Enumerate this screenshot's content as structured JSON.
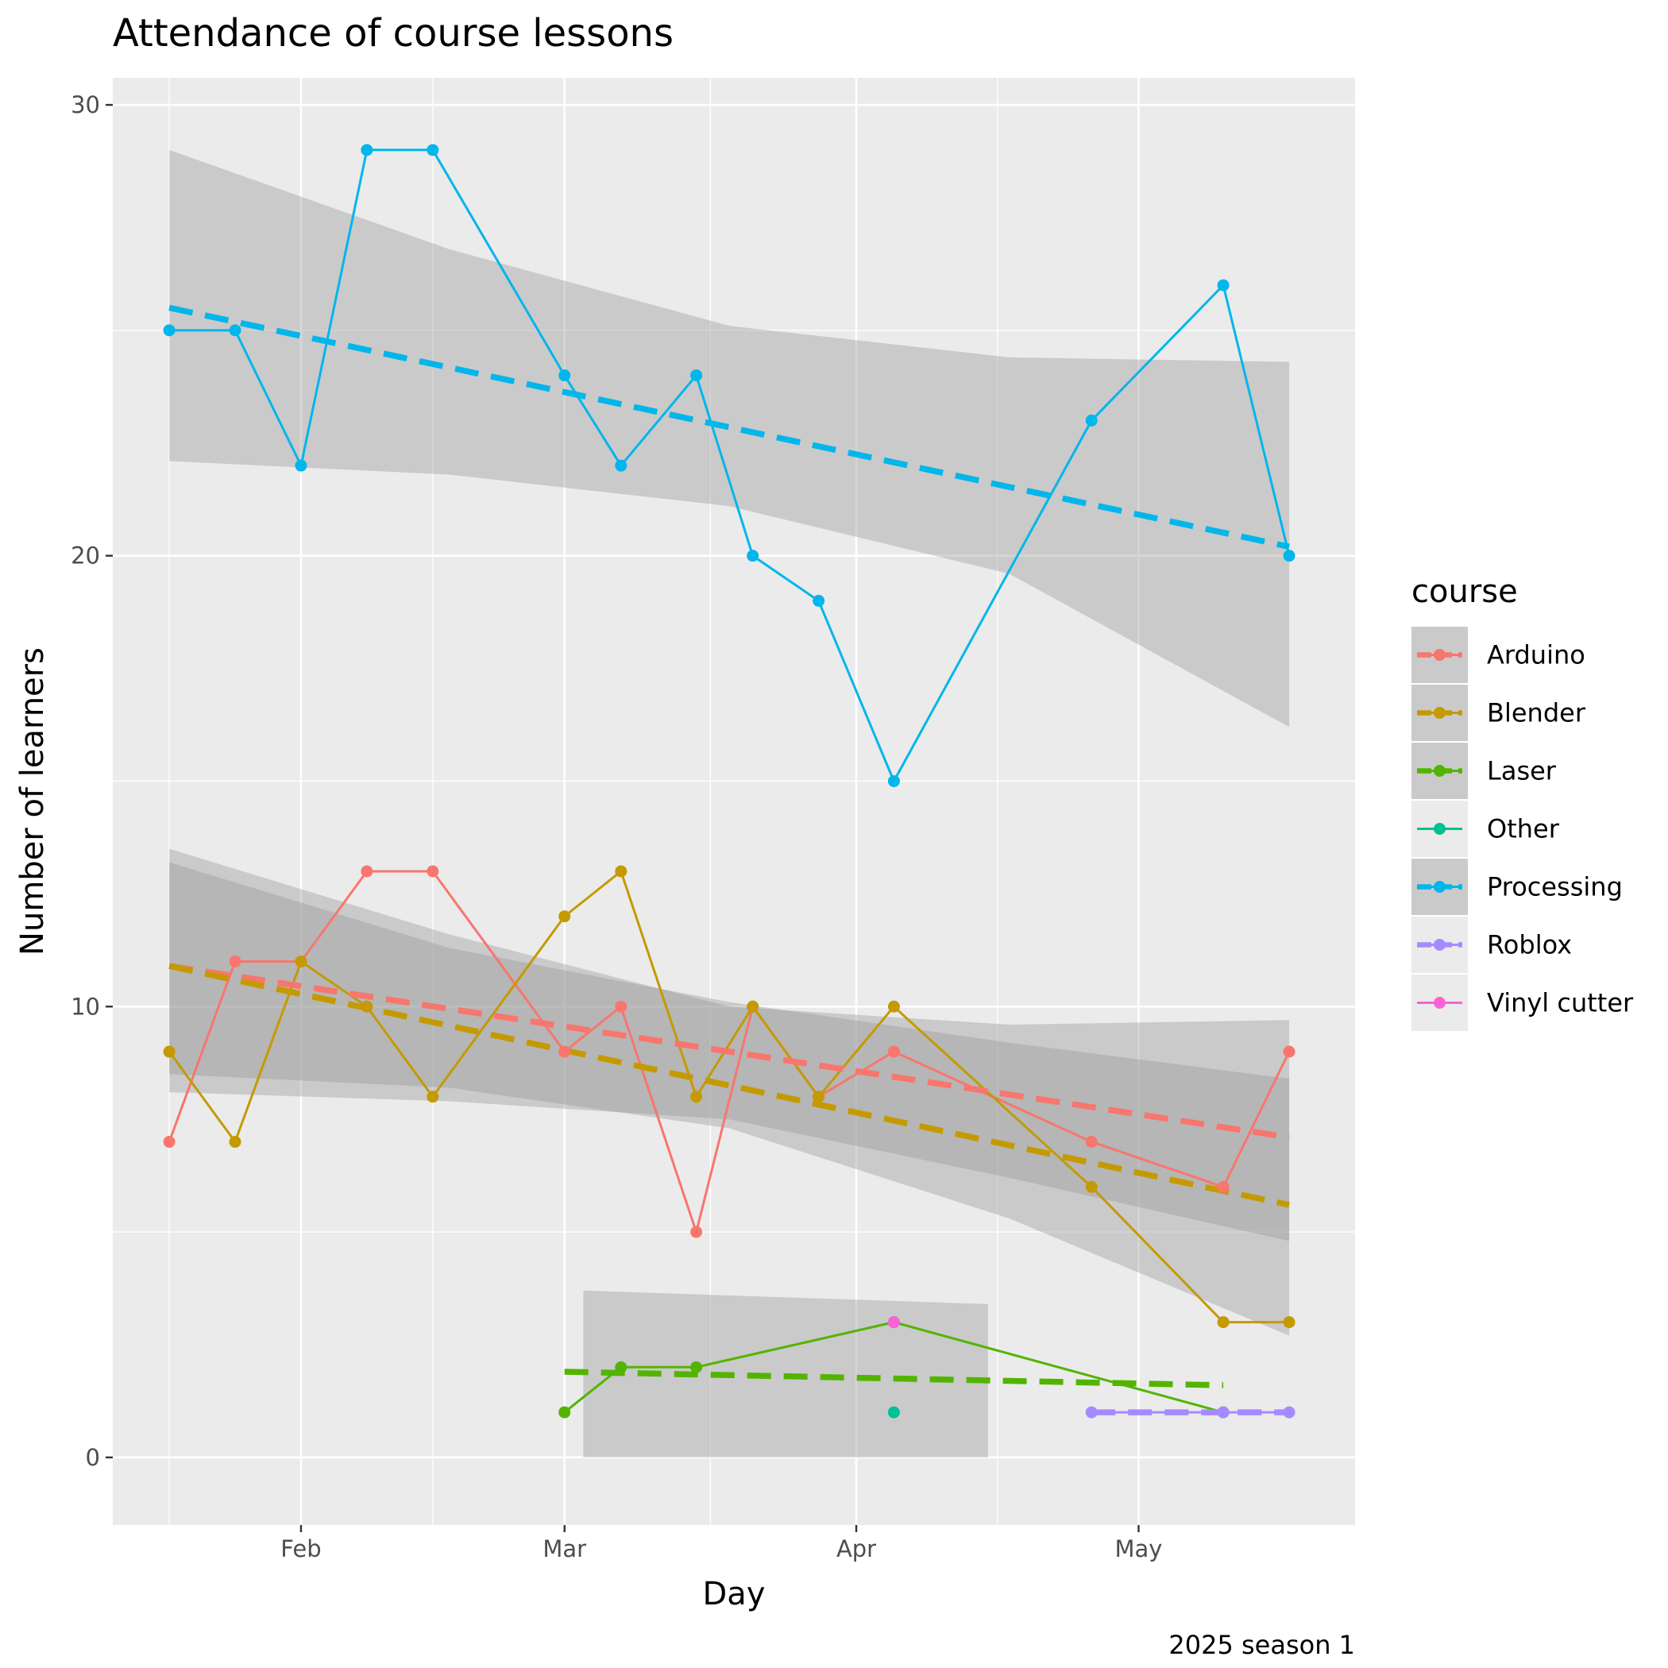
{
  "chart_data": {
    "type": "line",
    "title": "Attendance of course lessons",
    "xlabel": "Day",
    "ylabel": "Number of learners",
    "caption": "2025 season 1",
    "legend_title": "course",
    "legend_position": "right",
    "grid": true,
    "xlim": [
      "2025-01-12",
      "2025-05-24"
    ],
    "ylim": [
      -1.5,
      30.6
    ],
    "x_ticks": [
      {
        "date": "2025-02-01",
        "label": "Feb"
      },
      {
        "date": "2025-03-01",
        "label": "Mar"
      },
      {
        "date": "2025-04-01",
        "label": "Apr"
      },
      {
        "date": "2025-05-01",
        "label": "May"
      }
    ],
    "y_ticks": [
      0,
      10,
      20,
      30
    ],
    "series": [
      {
        "name": "Arduino",
        "color": "#F8766D",
        "points": [
          {
            "x": "2025-01-18",
            "y": 7
          },
          {
            "x": "2025-01-25",
            "y": 11
          },
          {
            "x": "2025-02-01",
            "y": 11
          },
          {
            "x": "2025-02-08",
            "y": 13
          },
          {
            "x": "2025-02-15",
            "y": 13
          },
          {
            "x": "2025-03-01",
            "y": 9
          },
          {
            "x": "2025-03-07",
            "y": 10
          },
          {
            "x": "2025-03-15",
            "y": 5
          },
          {
            "x": "2025-03-21",
            "y": 10
          },
          {
            "x": "2025-03-28",
            "y": 8
          },
          {
            "x": "2025-04-05",
            "y": 9
          },
          {
            "x": "2025-04-26",
            "y": 7
          },
          {
            "x": "2025-05-10",
            "y": 6
          },
          {
            "x": "2025-05-17",
            "y": 9
          }
        ],
        "trend": [
          {
            "x": "2025-01-18",
            "y": 10.9
          },
          {
            "x": "2025-05-17",
            "y": 7.1
          }
        ],
        "ci_lower": [
          8.1,
          7.9,
          7.5,
          6.2,
          4.8
        ],
        "ci_upper": [
          13.2,
          11.3,
          10.1,
          9.2,
          8.4
        ]
      },
      {
        "name": "Blender",
        "color": "#C49A00",
        "points": [
          {
            "x": "2025-01-18",
            "y": 9
          },
          {
            "x": "2025-01-25",
            "y": 7
          },
          {
            "x": "2025-02-01",
            "y": 11
          },
          {
            "x": "2025-02-08",
            "y": 10
          },
          {
            "x": "2025-02-15",
            "y": 8
          },
          {
            "x": "2025-03-01",
            "y": 12
          },
          {
            "x": "2025-03-07",
            "y": 13
          },
          {
            "x": "2025-03-15",
            "y": 8
          },
          {
            "x": "2025-03-21",
            "y": 10
          },
          {
            "x": "2025-03-28",
            "y": 8
          },
          {
            "x": "2025-04-05",
            "y": 10
          },
          {
            "x": "2025-04-26",
            "y": 6
          },
          {
            "x": "2025-05-10",
            "y": 3
          },
          {
            "x": "2025-05-17",
            "y": 3
          }
        ],
        "trend": [
          {
            "x": "2025-01-18",
            "y": 10.9
          },
          {
            "x": "2025-05-17",
            "y": 5.6
          }
        ],
        "ci_lower": [
          8.5,
          8.2,
          7.3,
          5.3,
          2.7
        ],
        "ci_upper": [
          13.5,
          11.6,
          10.0,
          9.6,
          9.7
        ]
      },
      {
        "name": "Laser",
        "color": "#53B400",
        "points": [
          {
            "x": "2025-03-01",
            "y": 1
          },
          {
            "x": "2025-03-07",
            "y": 2
          },
          {
            "x": "2025-03-15",
            "y": 2
          },
          {
            "x": "2025-04-05",
            "y": 3
          },
          {
            "x": "2025-05-10",
            "y": 1
          }
        ],
        "trend": [
          {
            "x": "2025-03-01",
            "y": 1.9
          },
          {
            "x": "2025-05-10",
            "y": 1.6
          }
        ],
        "ci_region": [
          {
            "x": "2025-03-03",
            "y0": 0.0,
            "y1": 3.7
          },
          {
            "x": "2025-04-15",
            "y0": 0.0,
            "y1": 3.4
          }
        ]
      },
      {
        "name": "Other",
        "color": "#00C094",
        "points": [
          {
            "x": "2025-04-05",
            "y": 1
          }
        ]
      },
      {
        "name": "Processing",
        "color": "#00B6EB",
        "points": [
          {
            "x": "2025-01-18",
            "y": 25
          },
          {
            "x": "2025-01-25",
            "y": 25
          },
          {
            "x": "2025-02-01",
            "y": 22
          },
          {
            "x": "2025-02-08",
            "y": 29
          },
          {
            "x": "2025-02-15",
            "y": 29
          },
          {
            "x": "2025-03-01",
            "y": 24
          },
          {
            "x": "2025-03-07",
            "y": 22
          },
          {
            "x": "2025-03-15",
            "y": 24
          },
          {
            "x": "2025-03-21",
            "y": 20
          },
          {
            "x": "2025-03-28",
            "y": 19
          },
          {
            "x": "2025-04-05",
            "y": 15
          },
          {
            "x": "2025-04-26",
            "y": 23
          },
          {
            "x": "2025-05-10",
            "y": 26
          },
          {
            "x": "2025-05-17",
            "y": 20
          }
        ],
        "trend": [
          {
            "x": "2025-01-18",
            "y": 25.5
          },
          {
            "x": "2025-05-17",
            "y": 20.2
          }
        ],
        "ci_lower": [
          22.1,
          21.8,
          21.1,
          19.6,
          16.2
        ],
        "ci_upper": [
          29.0,
          26.8,
          25.1,
          24.4,
          24.3
        ]
      },
      {
        "name": "Roblox",
        "color": "#A58AFF",
        "points": [
          {
            "x": "2025-04-26",
            "y": 1
          },
          {
            "x": "2025-05-10",
            "y": 1
          },
          {
            "x": "2025-05-17",
            "y": 1
          }
        ],
        "trend": [
          {
            "x": "2025-04-26",
            "y": 1.0
          },
          {
            "x": "2025-05-17",
            "y": 1.0
          }
        ]
      },
      {
        "name": "Vinyl cutter",
        "color": "#FB61D7",
        "points": [
          {
            "x": "2025-04-05",
            "y": 3
          }
        ]
      }
    ]
  }
}
